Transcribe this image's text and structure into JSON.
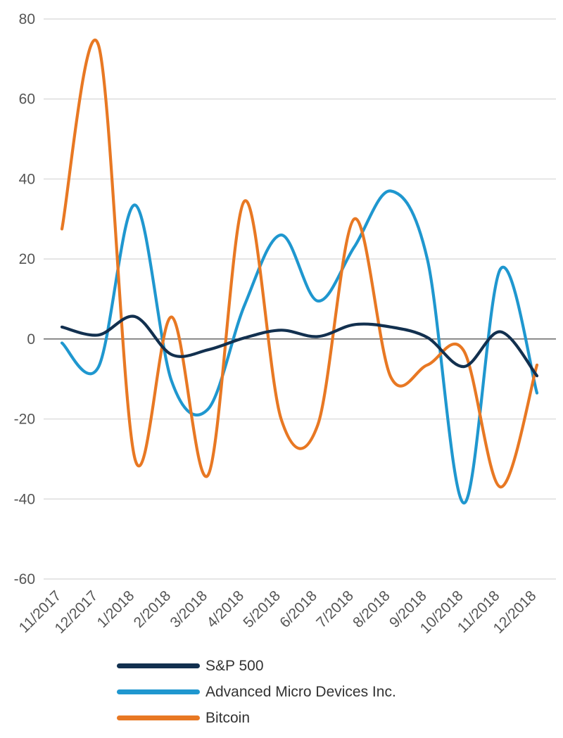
{
  "chart_data": {
    "type": "line",
    "title": "",
    "xlabel": "",
    "ylabel": "",
    "categories": [
      "11/2017",
      "12/2017",
      "1/2018",
      "2/2018",
      "3/2018",
      "4/2018",
      "5/2018",
      "6/2018",
      "7/2018",
      "8/2018",
      "9/2018",
      "10/2018",
      "11/2018",
      "12/2018"
    ],
    "yticks": [
      "80",
      "60",
      "40",
      "20",
      "0",
      "-20",
      "-40",
      "-60"
    ],
    "ylim": [
      -60,
      80
    ],
    "grid": true,
    "legend_position": "bottom",
    "series": [
      {
        "name": "S&P 500",
        "color": "#12304f",
        "values": [
          3,
          1,
          5.6,
          -3.9,
          -2.7,
          0.3,
          2.2,
          0.6,
          3.6,
          3.0,
          0.4,
          -6.9,
          1.8,
          -9.2
        ]
      },
      {
        "name": "Advanced Micro Devices Inc.",
        "color": "#1f97cf",
        "values": [
          -1,
          -7,
          33.5,
          -10.5,
          -17.5,
          8.5,
          26,
          9.5,
          23,
          37,
          20,
          -41,
          17.5,
          -13.5
        ]
      },
      {
        "name": "Bitcoin",
        "color": "#e87823",
        "values": [
          27.5,
          73.5,
          -30,
          5.5,
          -34,
          34.5,
          -20,
          -21.5,
          30,
          -9.5,
          -6.5,
          -3,
          -37,
          -6.5
        ]
      }
    ]
  }
}
